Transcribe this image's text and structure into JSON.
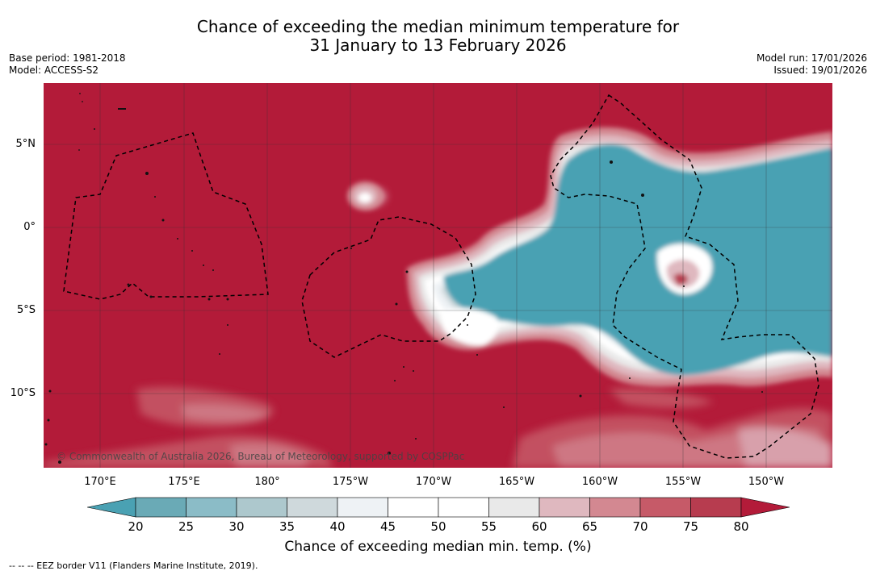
{
  "title": {
    "line1": "Chance of exceeding the median minimum temperature for",
    "line2": "31 January to 13 February 2026"
  },
  "meta": {
    "base_period": "Base period: 1981-2018",
    "model": "Model: ACCESS-S2",
    "model_run": "Model run: 17/01/2026",
    "issued": "Issued: 19/01/2026"
  },
  "map": {
    "longitude_labels": [
      "170°E",
      "175°E",
      "180°",
      "175°W",
      "170°W",
      "165°W",
      "160°W",
      "155°W",
      "150°W"
    ],
    "latitude_labels": [
      "5°N",
      "0°",
      "5°S",
      "10°S"
    ],
    "copyright": "© Commonwealth of Australia 2026, Bureau of Meteorology, supported by COSPPac",
    "colors": {
      "high": "#b31b39",
      "low": "#4aa1b3",
      "border": "#000000"
    }
  },
  "colorbar": {
    "ticks": [
      "20",
      "25",
      "30",
      "35",
      "40",
      "45",
      "50",
      "55",
      "60",
      "65",
      "70",
      "75",
      "80"
    ],
    "colors": [
      "#6aaab6",
      "#8bbcc7",
      "#adc8cd",
      "#cfd9dc",
      "#eef2f5",
      "#ffffff",
      "#ffffff",
      "#e9e9e9",
      "#dfb8bf",
      "#d38891",
      "#c65a68",
      "#b73c4f"
    ],
    "low_extend_color": "#4aa1b3",
    "high_extend_color": "#b31b39",
    "label": "Chance of exceeding median min. temp. (%)"
  },
  "footer": "--  --  -- EEZ border V11 (Flanders Marine Institute, 2019)."
}
